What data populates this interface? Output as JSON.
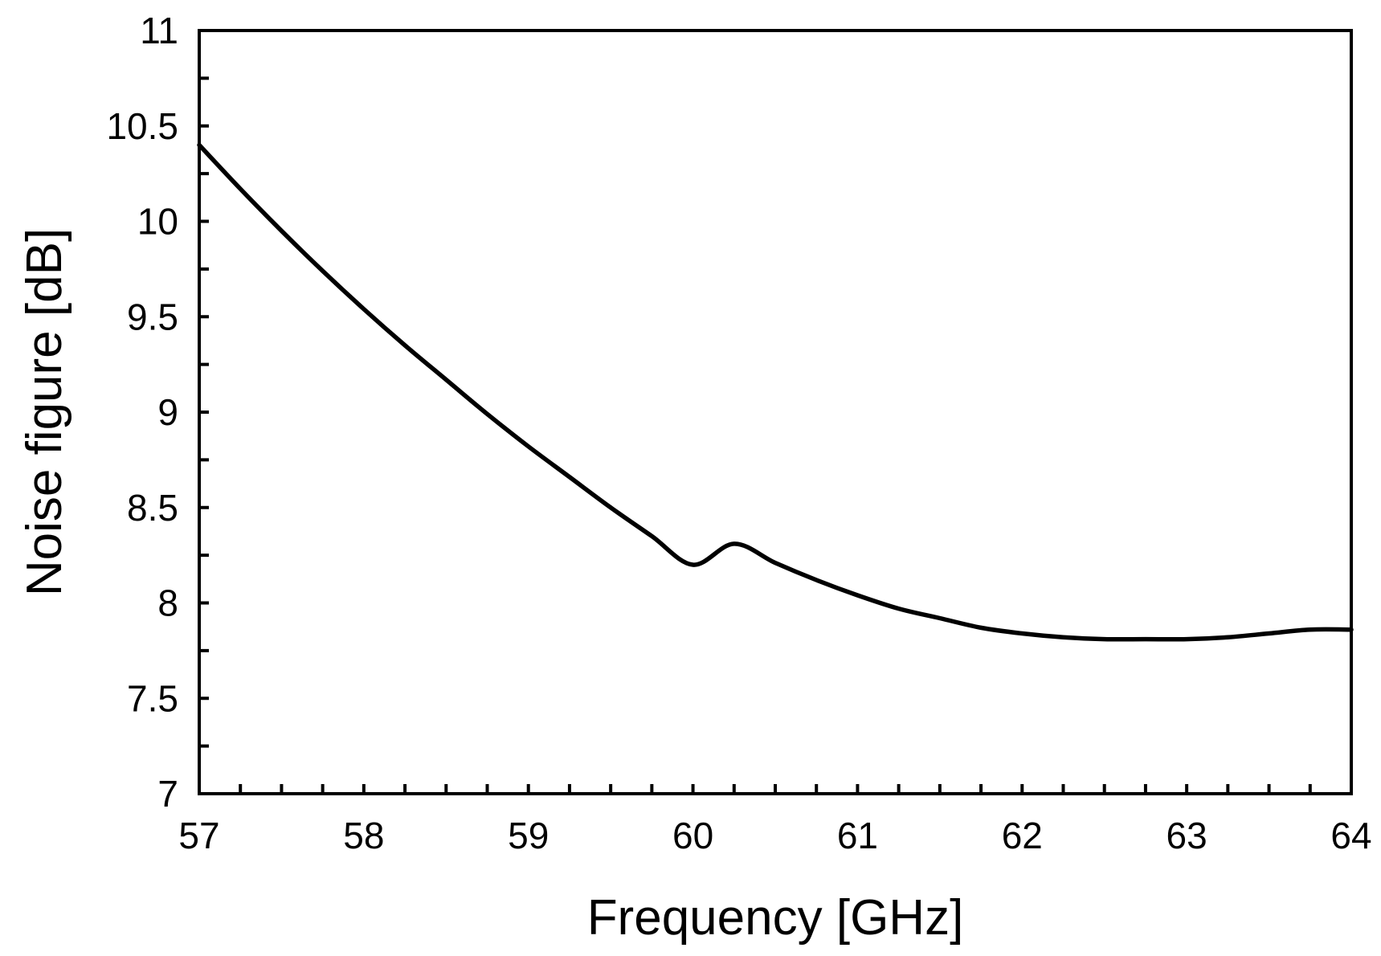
{
  "chart_data": {
    "type": "line",
    "title": "",
    "xlabel": "Frequency [GHz]",
    "ylabel": "Noise figure [dB]",
    "xlim": [
      57,
      64
    ],
    "ylim": [
      7,
      11
    ],
    "x_ticks": [
      57,
      58,
      59,
      60,
      61,
      62,
      63,
      64
    ],
    "x_tick_labels": [
      "57",
      "58",
      "59",
      "60",
      "61",
      "62",
      "63",
      "64"
    ],
    "x_minor_step": 0.25,
    "y_ticks": [
      7,
      7.5,
      8,
      8.5,
      9,
      9.5,
      10,
      10.5,
      11
    ],
    "y_tick_labels": [
      "7",
      "7.5",
      "8",
      "8.5",
      "9",
      "9.5",
      "10",
      "10.5",
      "11"
    ],
    "y_minor_step": 0.25,
    "grid": false,
    "legend": "none",
    "series": [
      {
        "color": "#000000",
        "x": [
          57.0,
          57.25,
          57.5,
          57.75,
          58.0,
          58.25,
          58.5,
          58.75,
          59.0,
          59.25,
          59.5,
          59.75,
          60.0,
          60.25,
          60.5,
          60.75,
          61.0,
          61.25,
          61.5,
          61.75,
          62.0,
          62.25,
          62.5,
          62.75,
          63.0,
          63.25,
          63.5,
          63.75,
          64.0
        ],
        "y": [
          10.4,
          10.17,
          9.95,
          9.74,
          9.54,
          9.35,
          9.17,
          8.99,
          8.82,
          8.66,
          8.5,
          8.35,
          8.2,
          8.31,
          8.21,
          8.12,
          8.04,
          7.97,
          7.92,
          7.87,
          7.84,
          7.82,
          7.81,
          7.81,
          7.81,
          7.82,
          7.84,
          7.86,
          7.86
        ]
      }
    ]
  }
}
